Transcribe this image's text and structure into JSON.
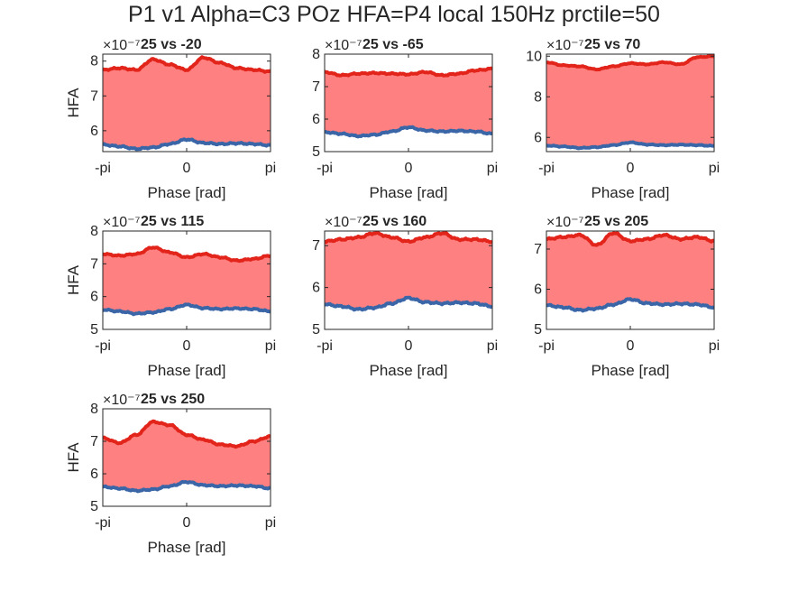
{
  "figure": {
    "title": "P1 v1 Alpha=C3 POz HFA=P4 local 150Hz prctile=50"
  },
  "colors": {
    "fill": "#ff8080",
    "upper_line": "#e2241b",
    "lower_line": "#3a66a8",
    "axis": "#262626"
  },
  "chart_data": [
    {
      "type": "area",
      "title": "25 vs -20",
      "xlabel": "Phase [rad]",
      "ylabel": "HFA",
      "y_exponent": "×10⁻⁷",
      "xticks": [
        "-pi",
        "0",
        "pi"
      ],
      "yticks": [
        "6",
        "7",
        "8"
      ],
      "xlim": [
        -3.1416,
        3.1416
      ],
      "ylim": [
        5.4,
        8.2
      ],
      "series": [
        {
          "x": [
            -3.14,
            -2.51,
            -1.88,
            -1.26,
            -0.63,
            0.0,
            0.63,
            1.26,
            1.88,
            2.51,
            3.14
          ],
          "values": [
            7.75,
            7.8,
            7.75,
            8.05,
            7.9,
            7.75,
            8.1,
            7.95,
            7.8,
            7.75,
            7.7
          ]
        },
        {
          "x": [
            -3.14,
            -2.51,
            -1.88,
            -1.26,
            -0.63,
            0.0,
            0.63,
            1.26,
            1.88,
            2.51,
            3.14
          ],
          "values": [
            5.6,
            5.55,
            5.48,
            5.52,
            5.62,
            5.75,
            5.65,
            5.62,
            5.64,
            5.62,
            5.58
          ]
        }
      ]
    },
    {
      "type": "area",
      "title": "25 vs -65",
      "xlabel": "Phase [rad]",
      "ylabel": "",
      "y_exponent": "×10⁻⁷",
      "xticks": [
        "-pi",
        "0",
        "pi"
      ],
      "yticks": [
        "5",
        "6",
        "7",
        "8"
      ],
      "xlim": [
        -3.1416,
        3.1416
      ],
      "ylim": [
        5.0,
        8.0
      ],
      "series": [
        {
          "x": [
            -3.14,
            -2.51,
            -1.88,
            -1.26,
            -0.63,
            0.0,
            0.63,
            1.26,
            1.88,
            2.51,
            3.14
          ],
          "values": [
            7.45,
            7.35,
            7.4,
            7.42,
            7.4,
            7.38,
            7.45,
            7.35,
            7.4,
            7.5,
            7.55
          ]
        },
        {
          "x": [
            -3.14,
            -2.51,
            -1.88,
            -1.26,
            -0.63,
            0.0,
            0.63,
            1.26,
            1.88,
            2.51,
            3.14
          ],
          "values": [
            5.6,
            5.55,
            5.48,
            5.52,
            5.62,
            5.75,
            5.65,
            5.62,
            5.64,
            5.62,
            5.55
          ]
        }
      ]
    },
    {
      "type": "area",
      "title": "25 vs 70",
      "xlabel": "Phase [rad]",
      "ylabel": "",
      "y_exponent": "×10⁻⁷",
      "xticks": [
        "-pi",
        "0",
        "pi"
      ],
      "yticks": [
        "6",
        "8",
        "10"
      ],
      "xlim": [
        -3.1416,
        3.1416
      ],
      "ylim": [
        5.3,
        10.1
      ],
      "series": [
        {
          "x": [
            -3.14,
            -2.51,
            -1.88,
            -1.26,
            -0.63,
            0.0,
            0.63,
            1.26,
            1.88,
            2.51,
            3.14
          ],
          "values": [
            9.7,
            9.55,
            9.5,
            9.35,
            9.5,
            9.65,
            9.6,
            9.7,
            9.6,
            9.95,
            10.0
          ]
        },
        {
          "x": [
            -3.14,
            -2.51,
            -1.88,
            -1.26,
            -0.63,
            0.0,
            0.63,
            1.26,
            1.88,
            2.51,
            3.14
          ],
          "values": [
            5.6,
            5.55,
            5.48,
            5.52,
            5.62,
            5.75,
            5.65,
            5.62,
            5.64,
            5.62,
            5.58
          ]
        }
      ]
    },
    {
      "type": "area",
      "title": "25 vs 115",
      "xlabel": "Phase [rad]",
      "ylabel": "HFA",
      "y_exponent": "×10⁻⁷",
      "xticks": [
        "-pi",
        "0",
        "pi"
      ],
      "yticks": [
        "5",
        "6",
        "7",
        "8"
      ],
      "xlim": [
        -3.1416,
        3.1416
      ],
      "ylim": [
        5.0,
        8.0
      ],
      "series": [
        {
          "x": [
            -3.14,
            -2.51,
            -1.88,
            -1.26,
            -0.63,
            0.0,
            0.63,
            1.26,
            1.88,
            2.51,
            3.14
          ],
          "values": [
            7.3,
            7.25,
            7.3,
            7.5,
            7.35,
            7.2,
            7.3,
            7.2,
            7.1,
            7.15,
            7.25
          ]
        },
        {
          "x": [
            -3.14,
            -2.51,
            -1.88,
            -1.26,
            -0.63,
            0.0,
            0.63,
            1.26,
            1.88,
            2.51,
            3.14
          ],
          "values": [
            5.6,
            5.55,
            5.48,
            5.52,
            5.62,
            5.75,
            5.65,
            5.62,
            5.64,
            5.62,
            5.55
          ]
        }
      ]
    },
    {
      "type": "area",
      "title": "25 vs 160",
      "xlabel": "Phase [rad]",
      "ylabel": "",
      "y_exponent": "×10⁻⁷",
      "xticks": [
        "-pi",
        "0",
        "pi"
      ],
      "yticks": [
        "5",
        "6",
        "7"
      ],
      "xlim": [
        -3.1416,
        3.1416
      ],
      "ylim": [
        5.0,
        7.35
      ],
      "series": [
        {
          "x": [
            -3.14,
            -2.51,
            -1.88,
            -1.26,
            -0.63,
            0.0,
            0.63,
            1.26,
            1.88,
            2.51,
            3.14
          ],
          "values": [
            7.1,
            7.15,
            7.2,
            7.3,
            7.2,
            7.1,
            7.2,
            7.3,
            7.15,
            7.15,
            7.1
          ]
        },
        {
          "x": [
            -3.14,
            -2.51,
            -1.88,
            -1.26,
            -0.63,
            0.0,
            0.63,
            1.26,
            1.88,
            2.51,
            3.14
          ],
          "values": [
            5.6,
            5.55,
            5.48,
            5.52,
            5.62,
            5.75,
            5.65,
            5.62,
            5.64,
            5.62,
            5.55
          ]
        }
      ]
    },
    {
      "type": "area",
      "title": "25 vs 205",
      "xlabel": "Phase [rad]",
      "ylabel": "",
      "y_exponent": "×10⁻⁷",
      "xticks": [
        "-pi",
        "0",
        "pi"
      ],
      "yticks": [
        "5",
        "6",
        "7"
      ],
      "xlim": [
        -3.1416,
        3.1416
      ],
      "ylim": [
        5.0,
        7.45
      ],
      "series": [
        {
          "x": [
            -3.14,
            -2.51,
            -1.88,
            -1.26,
            -0.63,
            0.0,
            0.63,
            1.26,
            1.88,
            2.51,
            3.14
          ],
          "values": [
            7.25,
            7.3,
            7.35,
            7.1,
            7.4,
            7.2,
            7.25,
            7.35,
            7.25,
            7.3,
            7.2
          ]
        },
        {
          "x": [
            -3.14,
            -2.51,
            -1.88,
            -1.26,
            -0.63,
            0.0,
            0.63,
            1.26,
            1.88,
            2.51,
            3.14
          ],
          "values": [
            5.6,
            5.55,
            5.48,
            5.52,
            5.62,
            5.75,
            5.65,
            5.62,
            5.64,
            5.62,
            5.55
          ]
        }
      ]
    },
    {
      "type": "area",
      "title": "25 vs 250",
      "xlabel": "Phase [rad]",
      "ylabel": "HFA",
      "y_exponent": "×10⁻⁷",
      "xticks": [
        "-pi",
        "0",
        "pi"
      ],
      "yticks": [
        "5",
        "6",
        "7",
        "8"
      ],
      "xlim": [
        -3.1416,
        3.1416
      ],
      "ylim": [
        5.0,
        8.0
      ],
      "series": [
        {
          "x": [
            -3.14,
            -2.51,
            -1.88,
            -1.26,
            -0.63,
            0.0,
            0.63,
            1.26,
            1.88,
            2.51,
            3.14
          ],
          "values": [
            7.1,
            6.95,
            7.2,
            7.6,
            7.5,
            7.2,
            7.05,
            6.9,
            6.85,
            7.0,
            7.15
          ]
        },
        {
          "x": [
            -3.14,
            -2.51,
            -1.88,
            -1.26,
            -0.63,
            0.0,
            0.63,
            1.26,
            1.88,
            2.51,
            3.14
          ],
          "values": [
            5.6,
            5.55,
            5.48,
            5.52,
            5.62,
            5.75,
            5.65,
            5.62,
            5.64,
            5.62,
            5.55
          ]
        }
      ]
    }
  ]
}
